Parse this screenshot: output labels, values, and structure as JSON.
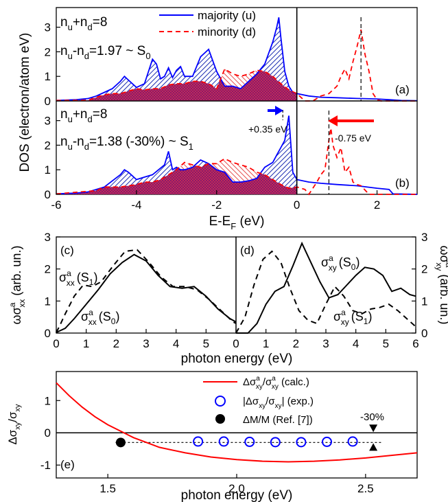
{
  "chart_data": [
    {
      "id": "a",
      "type": "area",
      "panel_label": "(a)",
      "ylabel": "DOS (electron/atom eV)",
      "xlim": [
        -6,
        3
      ],
      "ylim": [
        0,
        3.8
      ],
      "yticks": [
        "0",
        "1",
        "2",
        "3"
      ],
      "annotations": [
        "n",
        "u",
        "+n",
        "d",
        "=8",
        "n",
        "u",
        "-n",
        "d",
        "=1.97 ~ S",
        "0"
      ],
      "legend": [
        {
          "label": "majority (u)",
          "color": "#0000ff",
          "style": "solid"
        },
        {
          "label": "minority (d)",
          "color": "#ff0000",
          "style": "dashed"
        }
      ],
      "series": [
        {
          "name": "majority (u)",
          "color": "#0000ff",
          "x": [
            -6,
            -5.5,
            -5.2,
            -5.0,
            -4.8,
            -4.6,
            -4.4,
            -4.3,
            -4.2,
            -4.0,
            -3.8,
            -3.6,
            -3.5,
            -3.4,
            -3.3,
            -3.2,
            -3.1,
            -3.0,
            -2.9,
            -2.8,
            -2.6,
            -2.4,
            -2.2,
            -2.0,
            -1.8,
            -1.6,
            -1.4,
            -1.2,
            -1.0,
            -0.8,
            -0.6,
            -0.5,
            -0.45,
            -0.4,
            -0.3,
            -0.2,
            -0.1,
            0,
            0.3,
            0.6,
            1.0,
            1.5,
            2.0,
            2.3,
            2.6,
            3.0
          ],
          "y": [
            0.02,
            0.05,
            0.1,
            0.2,
            0.35,
            0.5,
            0.8,
            1.0,
            0.85,
            0.55,
            0.7,
            1.7,
            1.5,
            0.9,
            1.0,
            1.35,
            0.95,
            1.25,
            1.4,
            1.0,
            1.0,
            1.8,
            2.1,
            1.2,
            0.6,
            0.6,
            0.5,
            0.8,
            1.1,
            1.5,
            2.4,
            3.0,
            3.4,
            2.6,
            1.2,
            0.6,
            0.35,
            0.3,
            0.2,
            0.15,
            0.13,
            0.1,
            0.08,
            0.05,
            0.02,
            0.01
          ]
        },
        {
          "name": "minority (d)",
          "color": "#ff0000",
          "x": [
            -6,
            -5.2,
            -5.0,
            -4.8,
            -4.6,
            -4.4,
            -4.2,
            -4.0,
            -3.8,
            -3.6,
            -3.4,
            -3.2,
            -3.0,
            -2.8,
            -2.6,
            -2.4,
            -2.2,
            -2.0,
            -1.8,
            -1.6,
            -1.4,
            -1.2,
            -1.0,
            -0.8,
            -0.6,
            -0.4,
            -0.2,
            0,
            0.2,
            0.4,
            0.6,
            0.8,
            1.0,
            1.1,
            1.2,
            1.3,
            1.4,
            1.5,
            1.6,
            1.7,
            1.8,
            1.9,
            2.0,
            2.1,
            2.2,
            3.0
          ],
          "y": [
            0.02,
            0.03,
            0.15,
            0.25,
            0.3,
            0.3,
            0.4,
            0.5,
            0.45,
            0.5,
            0.5,
            0.65,
            0.7,
            0.7,
            0.8,
            0.8,
            0.7,
            0.5,
            1.3,
            1.1,
            1.0,
            1.1,
            1.25,
            1.2,
            1.0,
            0.7,
            0.45,
            0.3,
            0.0,
            0.0,
            0.2,
            0.3,
            0.6,
            1.0,
            1.3,
            0.9,
            1.6,
            2.2,
            2.9,
            1.9,
            1.2,
            0.3,
            0.05,
            0.0,
            0.0,
            0.0
          ]
        }
      ],
      "marker_lines": [
        {
          "x": 1.6,
          "style": "dashed"
        }
      ]
    },
    {
      "id": "b",
      "type": "area",
      "panel_label": "(b)",
      "xlabel": "E-E",
      "xlabel_sub": "F",
      "xlabel_unit": " (eV)",
      "xlim": [
        -6,
        3
      ],
      "ylim": [
        0,
        3.8
      ],
      "xticks": [
        "-6",
        "-4",
        "-2",
        "0",
        "2"
      ],
      "yticks": [
        "0",
        "1",
        "2",
        "3"
      ],
      "annotations": [
        "n",
        "u",
        "+n",
        "d",
        "=8",
        "n",
        "u",
        "-n",
        "d",
        "=1.38 (-30%) ~ S",
        "1",
        "+0.35 eV",
        "-0.75 eV"
      ],
      "series": [
        {
          "name": "majority (u)",
          "color": "#0000ff",
          "x": [
            -6,
            -5.5,
            -5.2,
            -5.0,
            -4.8,
            -4.6,
            -4.4,
            -4.3,
            -4.2,
            -4.0,
            -3.8,
            -3.6,
            -3.3,
            -3.2,
            -3.1,
            -3.0,
            -2.9,
            -2.8,
            -2.6,
            -2.4,
            -2.2,
            -2.0,
            -1.8,
            -1.6,
            -1.4,
            -1.2,
            -1.0,
            -0.8,
            -0.6,
            -0.5,
            -0.4,
            -0.3,
            -0.2,
            -0.1,
            0,
            0.3,
            0.6,
            1.0,
            1.5,
            2.0,
            2.3,
            2.4,
            3.0
          ],
          "y": [
            0.02,
            0.05,
            0.1,
            0.2,
            0.3,
            0.55,
            0.8,
            1.0,
            0.9,
            0.6,
            0.7,
            0.8,
            1.2,
            1.75,
            1.0,
            1.1,
            1.0,
            1.0,
            1.1,
            1.4,
            1.25,
            1.0,
            0.9,
            0.5,
            0.5,
            0.55,
            0.65,
            1.1,
            1.3,
            1.6,
            1.9,
            2.2,
            3.2,
            0.9,
            0.6,
            0.5,
            0.45,
            0.4,
            0.35,
            0.25,
            0.2,
            0.02,
            0.0
          ]
        },
        {
          "name": "minority (d)",
          "color": "#ff0000",
          "x": [
            -6,
            -5.0,
            -4.8,
            -4.6,
            -4.4,
            -4.2,
            -4.0,
            -3.8,
            -3.6,
            -3.4,
            -3.2,
            -3.0,
            -2.8,
            -2.6,
            -2.4,
            -2.2,
            -2.0,
            -1.8,
            -1.6,
            -1.4,
            -1.2,
            -1.0,
            -0.8,
            -0.6,
            -0.4,
            -0.2,
            0,
            0.2,
            0.3,
            0.5,
            0.6,
            0.7,
            0.8,
            0.85,
            0.9,
            1.0,
            1.1,
            1.2,
            1.3,
            1.4,
            1.5,
            1.6,
            1.8,
            2.0,
            2.2,
            3.0
          ],
          "y": [
            0.02,
            0.15,
            0.3,
            0.3,
            0.3,
            0.35,
            0.4,
            0.5,
            0.5,
            0.6,
            0.8,
            1.0,
            1.3,
            1.2,
            1.1,
            1.25,
            1.25,
            1.45,
            1.3,
            1.2,
            1.1,
            0.9,
            0.8,
            0.6,
            0.4,
            0.25,
            0.3,
            0.2,
            0.0,
            0.5,
            0.8,
            1.0,
            2.2,
            2.7,
            2.0,
            1.5,
            1.9,
            0.9,
            1.1,
            0.5,
            0.4,
            0.35,
            0.0,
            0.0,
            0.0,
            0.0
          ]
        }
      ],
      "marker_lines": [
        {
          "x": 0.8,
          "style": "dashed"
        }
      ]
    },
    {
      "id": "c",
      "type": "line",
      "panel_label": "(c)",
      "ylabel": "ωσ",
      "ylabel_sup": "a",
      "ylabel_sub": "xx",
      "ylabel_unit": " (arb. un.)",
      "xlim": [
        0,
        6
      ],
      "ylim": [
        0,
        3
      ],
      "xticks": [
        "0",
        "1",
        "2",
        "3",
        "4",
        "5"
      ],
      "yticks": [
        "0",
        "1",
        "2",
        "3"
      ],
      "annotations": [
        "σ",
        "a",
        "xx",
        "(S",
        "1",
        ")",
        "σ",
        "a",
        "xx",
        "(S",
        "0",
        ")"
      ],
      "series": [
        {
          "name": "S0",
          "style": "solid",
          "x": [
            0.0,
            0.3,
            0.6,
            1.0,
            1.4,
            1.8,
            2.2,
            2.6,
            3.0,
            3.4,
            3.8,
            4.2,
            4.6,
            5.0,
            5.4,
            5.8,
            6.0
          ],
          "y": [
            0.02,
            0.15,
            0.45,
            0.9,
            1.35,
            1.85,
            2.2,
            2.45,
            2.25,
            1.8,
            1.45,
            1.4,
            1.45,
            1.15,
            0.75,
            0.45,
            0.35
          ]
        },
        {
          "name": "S1",
          "style": "dashed",
          "x": [
            0.0,
            0.1,
            0.3,
            0.6,
            0.9,
            1.2,
            1.5,
            1.9,
            2.3,
            2.7,
            3.1,
            3.5,
            3.9,
            4.3,
            4.7,
            5.1,
            5.5,
            5.9,
            6.0
          ],
          "y": [
            0.02,
            0.2,
            0.6,
            1.15,
            1.5,
            1.45,
            1.6,
            2.1,
            2.55,
            2.6,
            2.2,
            1.75,
            1.45,
            1.45,
            1.35,
            1.05,
            0.7,
            0.35,
            0.3
          ]
        }
      ]
    },
    {
      "id": "d",
      "type": "line",
      "panel_label": "(d)",
      "ylabel": "ωσ",
      "ylabel_sup": "a",
      "ylabel_sub": "xy",
      "ylabel_unit": " (arb. un.)",
      "xlim": [
        0,
        6
      ],
      "ylim": [
        0,
        3
      ],
      "xticks": [
        "0",
        "1",
        "2",
        "3",
        "4",
        "5",
        "6"
      ],
      "yticks": [
        "0",
        "1",
        "2",
        "3"
      ],
      "annotations": [
        "σ",
        "a",
        "xy",
        "(S",
        "0",
        ")",
        "σ",
        "a",
        "xy",
        "(S",
        "1",
        ")"
      ],
      "series": [
        {
          "name": "S0",
          "style": "solid",
          "x": [
            0.0,
            0.4,
            0.7,
            1.0,
            1.3,
            1.6,
            1.9,
            2.2,
            2.5,
            2.8,
            3.1,
            3.4,
            3.7,
            4.0,
            4.3,
            4.6,
            4.9,
            5.2,
            5.5,
            5.8,
            6.0
          ],
          "y": [
            0.0,
            0.0,
            0.3,
            0.9,
            1.3,
            1.45,
            2.1,
            2.8,
            2.2,
            1.6,
            1.1,
            1.2,
            1.5,
            1.8,
            2.05,
            2.0,
            1.8,
            1.3,
            1.4,
            1.2,
            1.15
          ]
        },
        {
          "name": "S1",
          "style": "dashed",
          "x": [
            0.0,
            0.3,
            0.6,
            0.9,
            1.2,
            1.5,
            1.8,
            2.1,
            2.4,
            2.7,
            3.0,
            3.3,
            3.6,
            3.9,
            4.2,
            4.5,
            4.8,
            5.1,
            5.4,
            5.7,
            6.0
          ],
          "y": [
            0.0,
            0.5,
            1.5,
            2.3,
            2.55,
            2.2,
            1.4,
            0.7,
            0.4,
            0.3,
            0.9,
            1.45,
            1.15,
            0.7,
            0.6,
            0.75,
            0.8,
            0.9,
            0.7,
            0.45,
            0.2
          ]
        }
      ]
    },
    {
      "id": "e",
      "type": "line",
      "panel_label": "(e)",
      "ylabel": "Δσ",
      "ylabel_sub1": "xy",
      "ylabel_den": "σ",
      "ylabel_sub2": "xy",
      "xlabel": "photon energy (eV)",
      "xlim": [
        1.3,
        2.7
      ],
      "ylim": [
        -1.4,
        1.9
      ],
      "xticks": [
        "1.5",
        "2.0",
        "2.5"
      ],
      "yticks": [
        "-1",
        "0",
        "1"
      ],
      "annotations": [
        "-30%"
      ],
      "legend": [
        {
          "label": "Δσ",
          "sup": "a",
          "sub": "xy",
          "label2": "/σ",
          "sup2": "a",
          "sub2": "xy",
          "label3": " (calc.)",
          "color": "#ff0000",
          "marker": "line"
        },
        {
          "label": "|Δσ",
          "sub": "xy",
          "label2": "/σ",
          "sub2": "xy",
          "label3": "| (exp.)",
          "color": "#0000ff",
          "marker": "open-circle"
        },
        {
          "label": "ΔM/M (Ref. [7])",
          "color": "#000000",
          "marker": "filled-circle"
        }
      ],
      "series": [
        {
          "name": "calc",
          "color": "#ff0000",
          "x": [
            1.3,
            1.35,
            1.4,
            1.45,
            1.5,
            1.55,
            1.6,
            1.65,
            1.7,
            1.8,
            1.9,
            2.0,
            2.1,
            2.2,
            2.3,
            2.4,
            2.5,
            2.6,
            2.7
          ],
          "y": [
            1.55,
            1.15,
            0.8,
            0.5,
            0.25,
            0.05,
            -0.15,
            -0.3,
            -0.45,
            -0.62,
            -0.75,
            -0.83,
            -0.88,
            -0.9,
            -0.88,
            -0.84,
            -0.78,
            -0.7,
            -0.62
          ]
        },
        {
          "name": "exp",
          "x": [
            1.85,
            1.95,
            2.05,
            2.15,
            2.25,
            2.35,
            2.45
          ],
          "y": [
            -0.27,
            -0.27,
            -0.28,
            -0.29,
            -0.29,
            -0.28,
            -0.27
          ]
        },
        {
          "name": "ref",
          "x": [
            1.55
          ],
          "y": [
            -0.3
          ]
        }
      ],
      "reference_line_y": -0.3,
      "arrow_x": 2.53
    }
  ]
}
